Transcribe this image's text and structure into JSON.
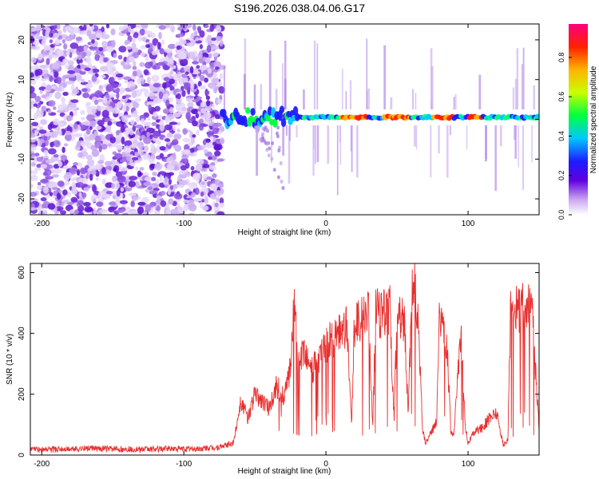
{
  "title": "S196.2026.038.04.06.G17",
  "chart_data": [
    {
      "type": "heatmap",
      "name": "spectrogram",
      "xlabel": "Height of straight line (km)",
      "ylabel": "Frequency (Hz)",
      "xlim": [
        -208,
        150
      ],
      "ylim": [
        -24,
        24
      ],
      "xticks": [
        -200,
        -100,
        0,
        100
      ],
      "yticks": [
        -20,
        -10,
        0,
        10,
        20
      ],
      "colorbar": {
        "label": "Normalized spectral amplitude",
        "range": [
          0,
          0.97
        ],
        "ticks": [
          0.0,
          0.2,
          0.4,
          0.6,
          0.8
        ],
        "tick_labels": [
          "0.0",
          "0.2",
          "0.4",
          "0.6",
          "0.8"
        ]
      },
      "features": {
        "noise_region_km": [
          -208,
          -73
        ],
        "signal_start_km": -73,
        "signal_line_hz": 0.5,
        "strong_signal_km": [
          [
            10,
            30
          ],
          [
            40,
            60
          ],
          [
            75,
            90
          ],
          [
            100,
            110
          ]
        ]
      }
    },
    {
      "type": "line",
      "name": "snr",
      "xlabel": "Height of straight line (km)",
      "ylabel": "SNR (10 * v/v)",
      "xlim": [
        -208,
        150
      ],
      "ylim": [
        0,
        630
      ],
      "xticks": [
        -200,
        -100,
        0,
        100
      ],
      "yticks": [
        0,
        200,
        400,
        600
      ],
      "color": "#e8302f",
      "series": [
        {
          "name": "SNR",
          "x": [
            -208,
            -190,
            -170,
            -150,
            -130,
            -110,
            -90,
            -75,
            -65,
            -60,
            -55,
            -50,
            -45,
            -40,
            -35,
            -30,
            -25,
            -22,
            -20,
            -15,
            -10,
            -5,
            0,
            5,
            10,
            15,
            18,
            20,
            25,
            30,
            33,
            35,
            40,
            45,
            48,
            50,
            55,
            58,
            60,
            62,
            65,
            68,
            70,
            75,
            78,
            80,
            82,
            85,
            88,
            90,
            95,
            98,
            100,
            105,
            110,
            115,
            120,
            125,
            128,
            130,
            135,
            140,
            145,
            150
          ],
          "y": [
            20,
            18,
            22,
            20,
            18,
            21,
            20,
            25,
            40,
            180,
            120,
            200,
            180,
            150,
            230,
            190,
            280,
            520,
            300,
            330,
            280,
            310,
            360,
            380,
            400,
            420,
            100,
            430,
            440,
            460,
            100,
            470,
            460,
            480,
            120,
            470,
            450,
            130,
            480,
            620,
            440,
            90,
            40,
            80,
            120,
            500,
            420,
            380,
            70,
            60,
            420,
            100,
            40,
            80,
            90,
            120,
            140,
            30,
            50,
            480,
            470,
            500,
            470,
            80
          ]
        }
      ]
    }
  ]
}
